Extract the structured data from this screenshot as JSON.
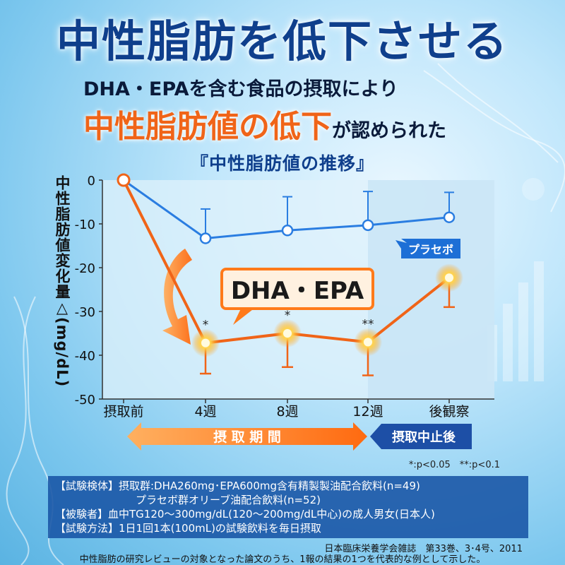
{
  "title": "中性脂肪を低下させる",
  "subtitle1": "DHA・EPAを含む食品の摂取により",
  "subtitle2_highlight": "中性脂肪値の低下",
  "subtitle2_rest": "が認められた",
  "chart_title": "『中性脂肪値の推移』",
  "colors": {
    "accent": "#f06418",
    "brand": "#0f3f8c",
    "placebo": "#2a7de1"
  },
  "notes": {
    "line1": "【試験検体】摂取群:DHA260mg･EPA600mg含有精製製油配合飲料(n=49)",
    "line2": "プラセボ群オリーブ油配合飲料(n=52)",
    "line3": "【被験者】血中TG120～300mg/dL(120～200mg/dL中心)の成人男女(日本人)",
    "line4": "【試験方法】1日1回1本(100mL)の試験飲料を毎日摂取"
  },
  "significance_note": "*:p<0.05　**:p<0.1",
  "source": "日本臨床栄養学会雑誌　第33巻、3･4号、2011",
  "footnote": "中性脂肪の研究レビューの対象となった論文のうち、1報の結果の1つを代表的な例として示した。",
  "chart_data": {
    "type": "line",
    "title": "『中性脂肪値の推移』",
    "ylabel": "中性脂肪値変化量△(mg/dL)",
    "categories": [
      "摂取前",
      "4週",
      "8週",
      "12週",
      "後観察"
    ],
    "ylim": [
      -50,
      0
    ],
    "yticks": [
      0,
      -10,
      -20,
      -30,
      -40,
      -50
    ],
    "period_labels": {
      "intake": "摂 取 期 間",
      "stop": "摂取中止後"
    },
    "series": [
      {
        "name": "プラセボ",
        "values": [
          0,
          -13.3,
          -11.5,
          -10.3,
          -8.5
        ],
        "error_upper": [
          0,
          -6.6,
          -3.8,
          -2.6,
          -2.8
        ],
        "error_lower": [
          0,
          -13.3,
          -11.5,
          -10.3,
          -8.5
        ]
      },
      {
        "name": "DHA・EPA",
        "values": [
          0,
          -37.2,
          -35.0,
          -37.0,
          -22.3
        ],
        "error_upper": [
          0,
          -37.2,
          -35.0,
          -37.0,
          -22.3
        ],
        "error_lower": [
          0,
          -44.2,
          -42.7,
          -44.6,
          -29.0
        ],
        "significance": [
          "",
          "*",
          "*",
          "**",
          ""
        ]
      }
    ]
  }
}
